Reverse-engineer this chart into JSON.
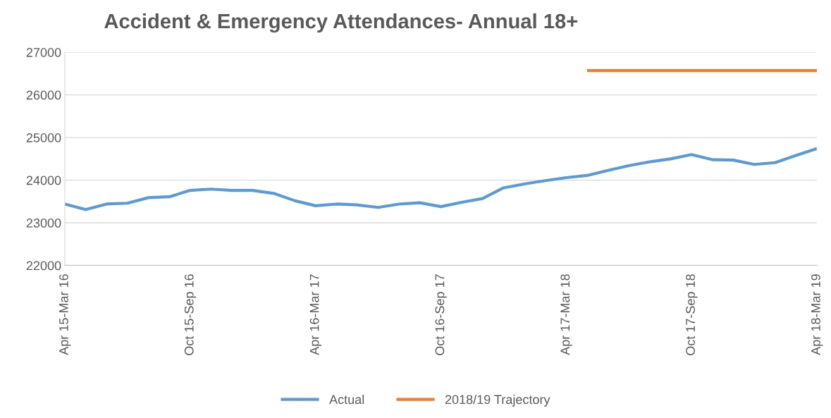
{
  "chart_data": {
    "type": "line",
    "title": "Accident & Emergency Attendances- Annual 18+",
    "categories": [
      "Apr 15-Mar 16",
      null,
      null,
      null,
      null,
      null,
      "Oct 15-Sep 16",
      null,
      null,
      null,
      null,
      null,
      "Apr 16-Mar 17",
      null,
      null,
      null,
      null,
      null,
      "Oct 16-Sep 17",
      null,
      null,
      null,
      null,
      null,
      "Apr 17-Mar 18",
      null,
      null,
      null,
      null,
      null,
      "Oct 17-Sep 18",
      null,
      null,
      null,
      null,
      null,
      "Apr 18-Mar 19"
    ],
    "series": [
      {
        "name": "Actual",
        "color": "#5b9bd5",
        "values": [
          23440,
          23310,
          23440,
          23460,
          23590,
          23610,
          23760,
          23790,
          23760,
          23760,
          23690,
          23520,
          23400,
          23440,
          23420,
          23360,
          23440,
          23470,
          23380,
          23480,
          23570,
          23820,
          23910,
          23990,
          24060,
          24110,
          24230,
          24340,
          24430,
          24500,
          24600,
          24480,
          24470,
          24370,
          24410,
          24580,
          24740
        ]
      },
      {
        "name": "2018/19 Trajectory",
        "color": "#ed7d31",
        "values": [
          null,
          null,
          null,
          null,
          null,
          null,
          null,
          null,
          null,
          null,
          null,
          null,
          null,
          null,
          null,
          null,
          null,
          null,
          null,
          null,
          null,
          null,
          null,
          null,
          null,
          26570,
          26570,
          26570,
          26570,
          26570,
          26570,
          26570,
          26570,
          26570,
          26570,
          26570,
          26570
        ]
      }
    ],
    "ylim": [
      22000,
      27000
    ],
    "yticks": [
      22000,
      23000,
      24000,
      25000,
      26000,
      27000
    ],
    "grid": "y",
    "legend": "bottom"
  }
}
